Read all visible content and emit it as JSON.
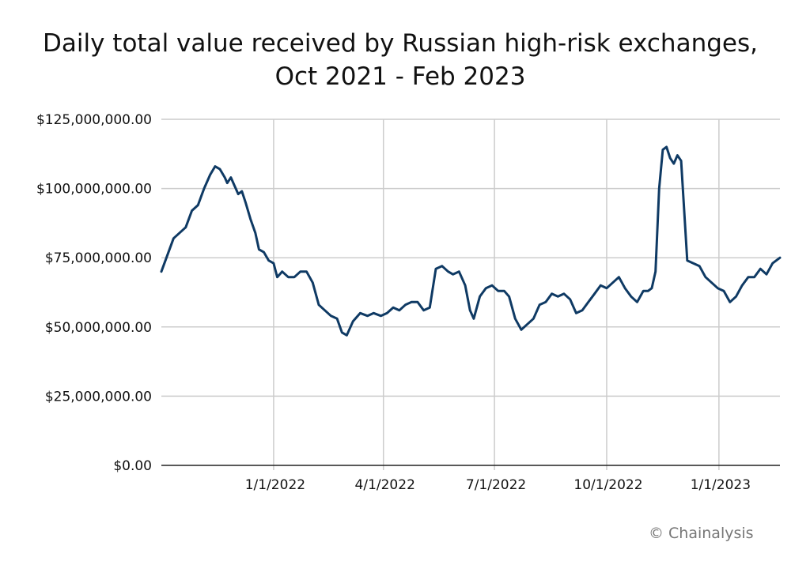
{
  "title_line1": "Daily total value received by Russian high-risk exchanges,",
  "title_line2": "Oct 2021 - Feb 2023",
  "credit": "© Chainalysis",
  "colors": {
    "line": "#0f3a64",
    "grid": "#cccccc",
    "axis": "#222222"
  },
  "chart_data": {
    "type": "line",
    "title": "Daily total value received by Russian high-risk exchanges, Oct 2021 - Feb 2023",
    "xlabel": "",
    "ylabel": "",
    "xlim": [
      "2021-10-01",
      "2023-02-20"
    ],
    "ylim": [
      0,
      125000000
    ],
    "grid": true,
    "y_ticks": [
      {
        "value": 0,
        "label": "$0.00"
      },
      {
        "value": 25000000,
        "label": "$25,000,000.00"
      },
      {
        "value": 50000000,
        "label": "$50,000,000.00"
      },
      {
        "value": 75000000,
        "label": "$75,000,000.00"
      },
      {
        "value": 100000000,
        "label": "$100,000,000.00"
      },
      {
        "value": 125000000,
        "label": "$125,000,000.00"
      }
    ],
    "x_ticks": [
      {
        "value": "2022-01-01",
        "label": "1/1/2022"
      },
      {
        "value": "2022-04-01",
        "label": "4/1/2022"
      },
      {
        "value": "2022-07-01",
        "label": "7/1/2022"
      },
      {
        "value": "2022-10-01",
        "label": "10/1/2022"
      },
      {
        "value": "2023-01-01",
        "label": "1/1/2023"
      }
    ],
    "series": [
      {
        "x": [
          "2021-10-01",
          "2021-10-06",
          "2021-10-11",
          "2021-10-16",
          "2021-10-21",
          "2021-10-26",
          "2021-10-31",
          "2021-11-05",
          "2021-11-10",
          "2021-11-14",
          "2021-11-18",
          "2021-11-22",
          "2021-11-24",
          "2021-11-27",
          "2021-11-30",
          "2021-12-03",
          "2021-12-06",
          "2021-12-09",
          "2021-12-13",
          "2021-12-17",
          "2021-12-20",
          "2021-12-24",
          "2021-12-28",
          "2022-01-01",
          "2022-01-04",
          "2022-01-08",
          "2022-01-13",
          "2022-01-18",
          "2022-01-23",
          "2022-01-28",
          "2022-02-02",
          "2022-02-07",
          "2022-02-12",
          "2022-02-17",
          "2022-02-22",
          "2022-02-26",
          "2022-03-02",
          "2022-03-07",
          "2022-03-13",
          "2022-03-19",
          "2022-03-24",
          "2022-03-30",
          "2022-04-04",
          "2022-04-09",
          "2022-04-14",
          "2022-04-19",
          "2022-04-24",
          "2022-04-29",
          "2022-05-04",
          "2022-05-09",
          "2022-05-14",
          "2022-05-19",
          "2022-05-24",
          "2022-05-28",
          "2022-06-02",
          "2022-06-07",
          "2022-06-11",
          "2022-06-14",
          "2022-06-19",
          "2022-06-24",
          "2022-06-29",
          "2022-07-04",
          "2022-07-09",
          "2022-07-13",
          "2022-07-18",
          "2022-07-23",
          "2022-07-28",
          "2022-08-02",
          "2022-08-07",
          "2022-08-12",
          "2022-08-17",
          "2022-08-22",
          "2022-08-27",
          "2022-09-01",
          "2022-09-06",
          "2022-09-11",
          "2022-09-16",
          "2022-09-21",
          "2022-09-26",
          "2022-10-01",
          "2022-10-06",
          "2022-10-11",
          "2022-10-16",
          "2022-10-21",
          "2022-10-26",
          "2022-10-31",
          "2022-11-04",
          "2022-11-07",
          "2022-11-10",
          "2022-11-13",
          "2022-11-16",
          "2022-11-19",
          "2022-11-22",
          "2022-11-25",
          "2022-11-28",
          "2022-12-01",
          "2022-12-06",
          "2022-12-11",
          "2022-12-16",
          "2022-12-21",
          "2022-12-26",
          "2022-12-31",
          "2023-01-05",
          "2023-01-10",
          "2023-01-15",
          "2023-01-20",
          "2023-01-25",
          "2023-01-30",
          "2023-02-04",
          "2023-02-09",
          "2023-02-14",
          "2023-02-20"
        ],
        "values": [
          70000000,
          76000000,
          82000000,
          84000000,
          86000000,
          92000000,
          94000000,
          100000000,
          105000000,
          108000000,
          107000000,
          104000000,
          102000000,
          104000000,
          101000000,
          98000000,
          99000000,
          95000000,
          89000000,
          84000000,
          78000000,
          77000000,
          74000000,
          73000000,
          68000000,
          70000000,
          68000000,
          68000000,
          70000000,
          70000000,
          66000000,
          58000000,
          56000000,
          54000000,
          53000000,
          48000000,
          47000000,
          52000000,
          55000000,
          54000000,
          55000000,
          54000000,
          55000000,
          57000000,
          56000000,
          58000000,
          59000000,
          59000000,
          56000000,
          57000000,
          71000000,
          72000000,
          70000000,
          69000000,
          70000000,
          65000000,
          56000000,
          53000000,
          61000000,
          64000000,
          65000000,
          63000000,
          63000000,
          61000000,
          53000000,
          49000000,
          51000000,
          53000000,
          58000000,
          59000000,
          62000000,
          61000000,
          62000000,
          60000000,
          55000000,
          56000000,
          59000000,
          62000000,
          65000000,
          64000000,
          66000000,
          68000000,
          64000000,
          61000000,
          59000000,
          63000000,
          63000000,
          64000000,
          70000000,
          100000000,
          114000000,
          115000000,
          111000000,
          109000000,
          112000000,
          110000000,
          74000000,
          73000000,
          72000000,
          68000000,
          66000000,
          64000000,
          63000000,
          59000000,
          61000000,
          65000000,
          68000000,
          68000000,
          71000000,
          69000000,
          73000000,
          75000000
        ]
      }
    ]
  }
}
